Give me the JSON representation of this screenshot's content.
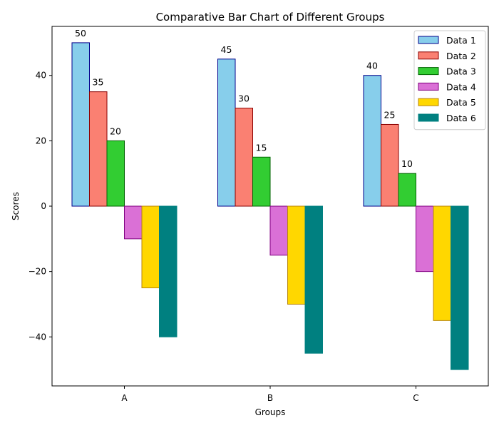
{
  "chart_data": {
    "type": "bar",
    "title": "Comparative Bar Chart of Different Groups",
    "xlabel": "Groups",
    "ylabel": "Scores",
    "categories": [
      "A",
      "B",
      "C"
    ],
    "ylim": [
      -55,
      55
    ],
    "yticks": [
      -40,
      -20,
      0,
      20,
      40
    ],
    "ytick_labels": [
      "−40",
      "−20",
      "0",
      "20",
      "40"
    ],
    "grid": false,
    "legend_position": "top-right",
    "series": [
      {
        "name": "Data 1",
        "values": [
          50,
          45,
          40
        ],
        "color": "#87CEEB",
        "edge": "#00008B",
        "labeled": true
      },
      {
        "name": "Data 2",
        "values": [
          35,
          30,
          25
        ],
        "color": "#FA8072",
        "edge": "#8B0000",
        "labeled": true
      },
      {
        "name": "Data 3",
        "values": [
          20,
          15,
          10
        ],
        "color": "#32CD32",
        "edge": "#006400",
        "labeled": true
      },
      {
        "name": "Data 4",
        "values": [
          -10,
          -15,
          -20
        ],
        "color": "#DA70D6",
        "edge": "#800080",
        "labeled": false
      },
      {
        "name": "Data 5",
        "values": [
          -25,
          -30,
          -35
        ],
        "color": "#FFD700",
        "edge": "#B8860B",
        "labeled": false
      },
      {
        "name": "Data 6",
        "values": [
          -40,
          -45,
          -50
        ],
        "color": "#008080",
        "edge": "#008080",
        "labeled": false
      }
    ]
  }
}
